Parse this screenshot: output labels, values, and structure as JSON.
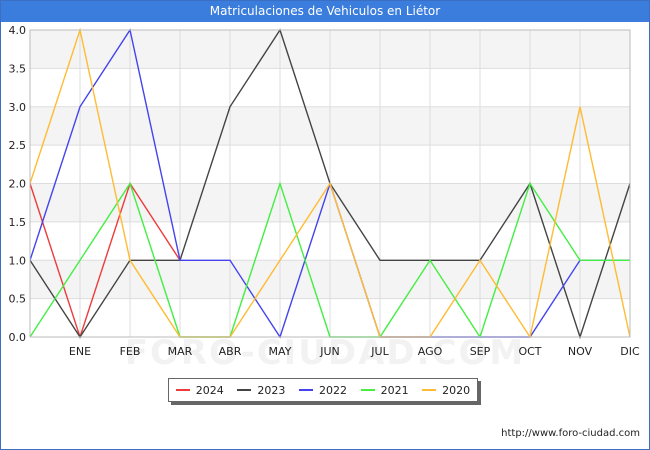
{
  "title": "Matriculaciones de Vehiculos en Liétor",
  "watermark": "FORO-CIUDAD.COM",
  "footer_url": "http://www.foro-ciudad.com",
  "chart_data": {
    "type": "line",
    "title": "Matriculaciones de Vehiculos en Liétor",
    "xlabel": "",
    "ylabel": "",
    "categories": [
      "",
      "ENE",
      "FEB",
      "MAR",
      "ABR",
      "MAY",
      "JUN",
      "JUL",
      "AGO",
      "SEP",
      "OCT",
      "NOV",
      "DIC"
    ],
    "ylim": [
      0,
      4
    ],
    "yticks": [
      "0.0",
      "0.5",
      "1.0",
      "1.5",
      "2.0",
      "2.5",
      "3.0",
      "3.5",
      "4.0"
    ],
    "grid": true,
    "legend_position": "bottom",
    "series": [
      {
        "name": "2024",
        "color": "#ee3b3b",
        "values": [
          2,
          0,
          2,
          1,
          null,
          null,
          null,
          null,
          null,
          null,
          null,
          null,
          null
        ]
      },
      {
        "name": "2023",
        "color": "#444444",
        "values": [
          1,
          0,
          1,
          1,
          3,
          4,
          2,
          1,
          1,
          1,
          2,
          0,
          2
        ]
      },
      {
        "name": "2022",
        "color": "#4444ee",
        "values": [
          1,
          3,
          4,
          1,
          1,
          0,
          2,
          0,
          0,
          0,
          0,
          1,
          1
        ]
      },
      {
        "name": "2021",
        "color": "#44ee44",
        "values": [
          0,
          1,
          2,
          0,
          0,
          2,
          0,
          0,
          1,
          0,
          2,
          1,
          1
        ]
      },
      {
        "name": "2020",
        "color": "#ffbb33",
        "values": [
          2,
          4,
          1,
          0,
          0,
          1,
          2,
          0,
          0,
          1,
          0,
          3,
          0
        ]
      }
    ]
  }
}
